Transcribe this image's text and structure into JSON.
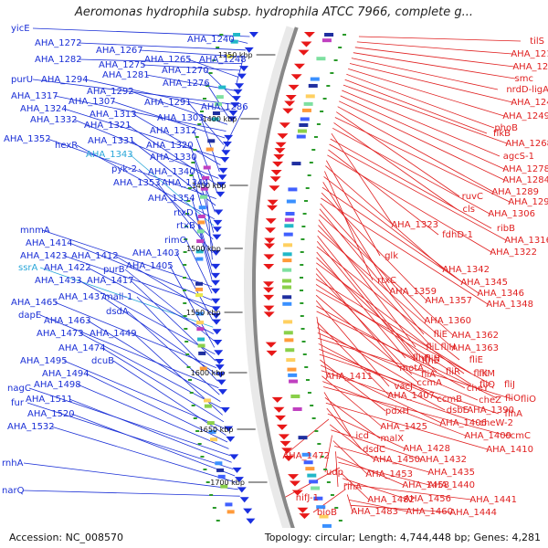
{
  "title": "Aeromonas hydrophila subsp. hydrophila ATCC 7966, complete g...",
  "footer": {
    "accession": "Accession: NC_008570",
    "topology": "Topology: circular; Length: 4,744,448 bp; Genes: 4,281"
  },
  "colors": {
    "left_label": "#1a2fd6",
    "left_label_alt": "#2aa7d9",
    "right_label": "#e02020",
    "backbone": "#888888",
    "tick": "#1a8f1a"
  },
  "kbp_ticks": [
    "1350 kbp",
    "1400 kbp",
    "1450 kbp",
    "1500 kbp",
    "1550 kbp",
    "1600 kbp",
    "1650 kbp",
    "1700 kbp"
  ],
  "left_labels": [
    {
      "text": "yicE"
    },
    {
      "text": "AHA_1240"
    },
    {
      "text": "AHA_1272"
    },
    {
      "text": "AHA_1267"
    },
    {
      "text": "AHA_1282"
    },
    {
      "text": "AHA_1275"
    },
    {
      "text": "AHA_1265"
    },
    {
      "text": "AHA_1248"
    },
    {
      "text": "AHA_1281"
    },
    {
      "text": "AHA_1270"
    },
    {
      "text": "purU"
    },
    {
      "text": "AHA_1294"
    },
    {
      "text": "AHA_1276"
    },
    {
      "text": "AHA_1292"
    },
    {
      "text": "AHA_1317"
    },
    {
      "text": "AHA_1307"
    },
    {
      "text": "AHA_1291"
    },
    {
      "text": "AHA_1286"
    },
    {
      "text": "AHA_1324"
    },
    {
      "text": "AHA_1313"
    },
    {
      "text": "AHA_1303"
    },
    {
      "text": "AHA_1332"
    },
    {
      "text": "AHA_1321"
    },
    {
      "text": "AHA_1312"
    },
    {
      "text": "AHA_1352"
    },
    {
      "text": "AHA_1331"
    },
    {
      "text": "AHA_1320"
    },
    {
      "text": "hexR"
    },
    {
      "text": "AHA_1343",
      "alt": true
    },
    {
      "text": "AHA_1330"
    },
    {
      "text": "pyk-2"
    },
    {
      "text": "AHA_1340"
    },
    {
      "text": "AHA_1353"
    },
    {
      "text": "AHA_1344"
    },
    {
      "text": "AHA_1354"
    },
    {
      "text": "rtxD"
    },
    {
      "text": "rtxB"
    },
    {
      "text": "mnmA"
    },
    {
      "text": "rimO"
    },
    {
      "text": "AHA_1414"
    },
    {
      "text": "AHA_1423"
    },
    {
      "text": "AHA_1412"
    },
    {
      "text": "AHA_1403"
    },
    {
      "text": "ssrA",
      "alt": true
    },
    {
      "text": "AHA_1422"
    },
    {
      "text": "purB"
    },
    {
      "text": "AHA_1405"
    },
    {
      "text": "AHA_1433"
    },
    {
      "text": "AHA_1417"
    },
    {
      "text": "AHA_1465"
    },
    {
      "text": "AHA_1437"
    },
    {
      "text": "mall-1"
    },
    {
      "text": "dapE"
    },
    {
      "text": "dsdA"
    },
    {
      "text": "AHA_1463"
    },
    {
      "text": "AHA_1473"
    },
    {
      "text": "AHA_1449"
    },
    {
      "text": "AHA_1474"
    },
    {
      "text": "AHA_1495"
    },
    {
      "text": "dcuB"
    },
    {
      "text": "AHA_1494"
    },
    {
      "text": "AHA_1498"
    },
    {
      "text": "nagC"
    },
    {
      "text": "AHA_1511"
    },
    {
      "text": "fur"
    },
    {
      "text": "AHA_1520"
    },
    {
      "text": "AHA_1532"
    },
    {
      "text": "rnhA"
    },
    {
      "text": "narQ"
    }
  ],
  "right_labels": [
    {
      "text": "tilS"
    },
    {
      "text": "AHA_1214"
    },
    {
      "text": "AHA_1222"
    },
    {
      "text": "smc"
    },
    {
      "text": "nrdD-ligA"
    },
    {
      "text": "AHA_1242"
    },
    {
      "text": "AHA_1249"
    },
    {
      "text": "phoB"
    },
    {
      "text": "flkB"
    },
    {
      "text": "AHA_1268"
    },
    {
      "text": "agcS-1"
    },
    {
      "text": "AHA_1278"
    },
    {
      "text": "AHA_1284"
    },
    {
      "text": "AHA_1289"
    },
    {
      "text": "ruvC"
    },
    {
      "text": "AHA_1293"
    },
    {
      "text": "cls"
    },
    {
      "text": "AHA_1306"
    },
    {
      "text": "AHA_1323"
    },
    {
      "text": "ribB"
    },
    {
      "text": "AHA_1316"
    },
    {
      "text": "fdhD-1"
    },
    {
      "text": "AHA_1322"
    },
    {
      "text": "glk"
    },
    {
      "text": "AHA_1342"
    },
    {
      "text": "rtxC"
    },
    {
      "text": "AHA_1345"
    },
    {
      "text": "AHA_1359"
    },
    {
      "text": "AHA_1346"
    },
    {
      "text": "AHA_1357"
    },
    {
      "text": "AHA_1348"
    },
    {
      "text": "AHA_1360"
    },
    {
      "text": "fliE"
    },
    {
      "text": "AHA_1362"
    },
    {
      "text": "fliL"
    },
    {
      "text": "fliH"
    },
    {
      "text": "AHA_1363"
    },
    {
      "text": "fliN"
    },
    {
      "text": "flhE"
    },
    {
      "text": "fliE"
    },
    {
      "text": "flhF"
    },
    {
      "text": "fliR"
    },
    {
      "text": "fliK"
    },
    {
      "text": "motA"
    },
    {
      "text": "fliA"
    },
    {
      "text": "fliM"
    },
    {
      "text": "fliQ"
    },
    {
      "text": "fliJ"
    },
    {
      "text": "ccmA"
    },
    {
      "text": "vacJ"
    },
    {
      "text": "cheY"
    },
    {
      "text": "fliO"
    },
    {
      "text": "AHA_1411"
    },
    {
      "text": "AHA_1407"
    },
    {
      "text": "ccmB"
    },
    {
      "text": "cheZ"
    },
    {
      "text": "fliO"
    },
    {
      "text": "dsbE"
    },
    {
      "text": "AHA_1390"
    },
    {
      "text": "flhA"
    },
    {
      "text": "pdxH"
    },
    {
      "text": "AHA_1406"
    },
    {
      "text": "cheW-2"
    },
    {
      "text": "AHA_1425"
    },
    {
      "text": "AHA_1409"
    },
    {
      "text": "ccmC"
    },
    {
      "text": "icd"
    },
    {
      "text": "malX"
    },
    {
      "text": "AHA_1410"
    },
    {
      "text": "dsdC"
    },
    {
      "text": "AHA_1428"
    },
    {
      "text": "AHA_1472"
    },
    {
      "text": "AHA_1450"
    },
    {
      "text": "AHA_1432"
    },
    {
      "text": "udp"
    },
    {
      "text": "AHA_1453"
    },
    {
      "text": "AHA_1435"
    },
    {
      "text": "rihA"
    },
    {
      "text": "AHA_1458"
    },
    {
      "text": "AHA_1440"
    },
    {
      "text": "nifJ-1"
    },
    {
      "text": "AHA_1482"
    },
    {
      "text": "AHA_1456"
    },
    {
      "text": "AHA_1441"
    },
    {
      "text": "bioB"
    },
    {
      "text": "AHA_1483"
    },
    {
      "text": "AHA_1460"
    },
    {
      "text": "AHA_1444"
    }
  ]
}
